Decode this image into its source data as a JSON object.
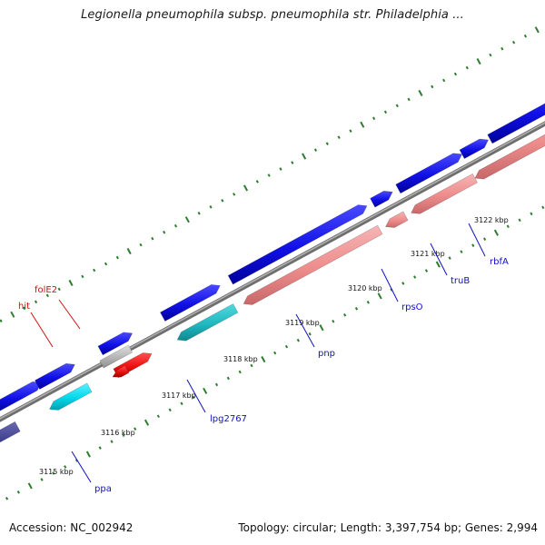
{
  "header": {
    "title": "Legionella pneumophila subsp. pneumophila str. Philadelphia ..."
  },
  "footer": {
    "accession": "Accession: NC_002942",
    "summary": "Topology: circular; Length: 3,397,754 bp; Genes: 2,994"
  },
  "colors": {
    "backbone": "#8a8a8a",
    "tick": "#2e7d2e",
    "forward_gene": "#1212e0",
    "reverse_gene": "#f09090",
    "cyan_gene": "#00cfe0",
    "teal_gene": "#20b8c0",
    "red_gene": "#ee1111",
    "navy_gene": "#3a3a8c",
    "label_blue": "#1010c0",
    "label_red": "#d01010"
  },
  "scale_labels": [
    "3115 kbp",
    "3116 kbp",
    "3117 kbp",
    "3118 kbp",
    "3119 kbp",
    "3120 kbp",
    "3121 kbp",
    "3122 kbp"
  ],
  "gene_labels": [
    {
      "name": "ppa",
      "color": "blue"
    },
    {
      "name": "lpg2767",
      "color": "blue"
    },
    {
      "name": "pnp",
      "color": "blue"
    },
    {
      "name": "rpsO",
      "color": "blue"
    },
    {
      "name": "truB",
      "color": "blue"
    },
    {
      "name": "rbfA",
      "color": "blue"
    },
    {
      "name": "folE2",
      "color": "red"
    },
    {
      "name": "hit",
      "color": "red"
    }
  ]
}
